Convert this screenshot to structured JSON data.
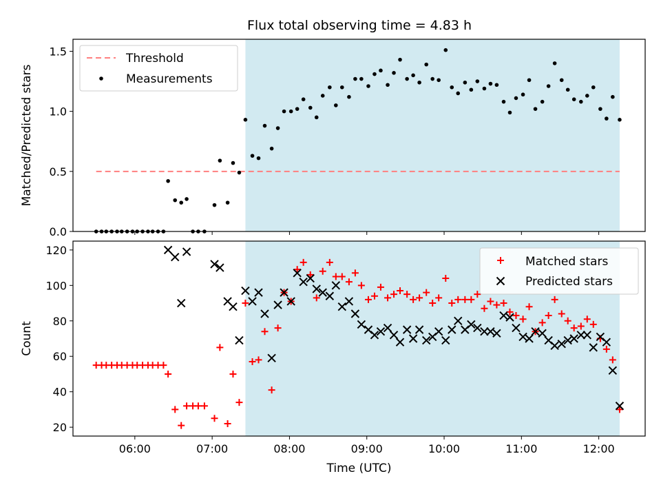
{
  "title": "Flux total observing time = 4.83 h",
  "colors": {
    "shade": "#add8e6",
    "threshold": "#ff7f7f",
    "measurements": "#000000",
    "matched": "#ff0000",
    "predicted": "#000000"
  },
  "chart_data": [
    {
      "type": "scatter",
      "panel": "top",
      "ylabel": "Matched/Predicted stars",
      "xlim": [
        5.2,
        12.6
      ],
      "ylim": [
        0,
        1.6
      ],
      "yticks": [
        0,
        0.5,
        1.0,
        1.5
      ],
      "ytick_labels": [
        "0.0",
        "0.5",
        "1.0",
        "1.5"
      ],
      "shade_span": [
        7.43,
        12.27
      ],
      "legend_position": "top-left",
      "threshold": {
        "name": "Threshold",
        "y": 0.5,
        "x_range": [
          5.5,
          12.27
        ],
        "style": "dashed"
      },
      "series": [
        {
          "name": "Measurements",
          "x": [
            5.5,
            5.57,
            5.63,
            5.7,
            5.77,
            5.83,
            5.9,
            5.97,
            6.03,
            6.1,
            6.17,
            6.23,
            6.3,
            6.37,
            6.43,
            6.52,
            6.6,
            6.67,
            6.75,
            6.82,
            6.9,
            7.03,
            7.1,
            7.2,
            7.27,
            7.35,
            7.43,
            7.52,
            7.6,
            7.68,
            7.77,
            7.85,
            7.93,
            8.02,
            8.1,
            8.18,
            8.27,
            8.35,
            8.43,
            8.52,
            8.6,
            8.68,
            8.77,
            8.85,
            8.93,
            9.02,
            9.1,
            9.18,
            9.27,
            9.35,
            9.43,
            9.52,
            9.6,
            9.68,
            9.77,
            9.85,
            9.93,
            10.02,
            10.1,
            10.18,
            10.27,
            10.35,
            10.43,
            10.52,
            10.6,
            10.68,
            10.77,
            10.85,
            10.93,
            11.02,
            11.1,
            11.18,
            11.27,
            11.35,
            11.43,
            11.52,
            11.6,
            11.68,
            11.77,
            11.85,
            11.93,
            12.02,
            12.1,
            12.18,
            12.27
          ],
          "y": [
            0,
            0,
            0,
            0,
            0,
            0,
            0,
            0,
            0,
            0,
            0,
            0,
            0,
            0,
            0.42,
            0.26,
            0.24,
            0.27,
            0,
            0,
            0,
            0.22,
            0.59,
            0.24,
            0.57,
            0.49,
            0.93,
            0.63,
            0.61,
            0.88,
            0.69,
            0.86,
            1.0,
            1.0,
            1.02,
            1.1,
            1.03,
            0.95,
            1.13,
            1.2,
            1.05,
            1.2,
            1.12,
            1.27,
            1.27,
            1.21,
            1.31,
            1.34,
            1.22,
            1.32,
            1.43,
            1.27,
            1.3,
            1.24,
            1.39,
            1.27,
            1.26,
            1.51,
            1.2,
            1.15,
            1.24,
            1.18,
            1.25,
            1.19,
            1.23,
            1.22,
            1.08,
            0.99,
            1.11,
            1.14,
            1.26,
            1.02,
            1.08,
            1.21,
            1.4,
            1.26,
            1.18,
            1.1,
            1.08,
            1.13,
            1.2,
            1.02,
            0.94,
            1.12,
            0.93
          ]
        }
      ]
    },
    {
      "type": "scatter",
      "panel": "bottom",
      "xlabel": "Time (UTC)",
      "ylabel": "Count",
      "xlim": [
        5.2,
        12.6
      ],
      "ylim": [
        15,
        125
      ],
      "xticks": [
        6,
        7,
        8,
        9,
        10,
        11,
        12
      ],
      "xtick_labels": [
        "06:00",
        "07:00",
        "08:00",
        "09:00",
        "10:00",
        "11:00",
        "12:00"
      ],
      "yticks": [
        20,
        40,
        60,
        80,
        100,
        120
      ],
      "ytick_labels": [
        "20",
        "40",
        "60",
        "80",
        "100",
        "120"
      ],
      "shade_span": [
        7.43,
        12.27
      ],
      "legend_position": "top-right",
      "series": [
        {
          "name": "Matched stars",
          "marker": "plus",
          "x": [
            5.5,
            5.57,
            5.63,
            5.7,
            5.77,
            5.83,
            5.9,
            5.97,
            6.03,
            6.1,
            6.17,
            6.23,
            6.3,
            6.37,
            6.43,
            6.52,
            6.6,
            6.67,
            6.75,
            6.82,
            6.9,
            7.03,
            7.1,
            7.2,
            7.27,
            7.35,
            7.43,
            7.52,
            7.6,
            7.68,
            7.77,
            7.85,
            7.93,
            8.02,
            8.1,
            8.18,
            8.27,
            8.35,
            8.43,
            8.52,
            8.6,
            8.68,
            8.77,
            8.85,
            8.93,
            9.02,
            9.1,
            9.18,
            9.27,
            9.35,
            9.43,
            9.52,
            9.6,
            9.68,
            9.77,
            9.85,
            9.93,
            10.02,
            10.1,
            10.18,
            10.27,
            10.35,
            10.43,
            10.52,
            10.6,
            10.68,
            10.77,
            10.85,
            10.93,
            11.02,
            11.1,
            11.18,
            11.27,
            11.35,
            11.43,
            11.52,
            11.6,
            11.68,
            11.77,
            11.85,
            11.93,
            12.02,
            12.1,
            12.18,
            12.27
          ],
          "y": [
            55,
            55,
            55,
            55,
            55,
            55,
            55,
            55,
            55,
            55,
            55,
            55,
            55,
            55,
            50,
            30,
            21,
            32,
            32,
            32,
            32,
            25,
            65,
            22,
            50,
            34,
            90,
            57,
            58,
            74,
            41,
            76,
            96,
            91,
            109,
            113,
            106,
            93,
            108,
            113,
            105,
            105,
            102,
            107,
            100,
            92,
            94,
            99,
            93,
            95,
            97,
            95,
            92,
            93,
            96,
            90,
            93,
            104,
            90,
            92,
            92,
            92,
            95,
            87,
            91,
            89,
            90,
            85,
            83,
            81,
            88,
            74,
            79,
            83,
            92,
            84,
            80,
            76,
            77,
            81,
            78,
            70,
            64,
            58,
            30
          ]
        },
        {
          "name": "Predicted stars",
          "marker": "cross",
          "x": [
            6.43,
            6.52,
            6.6,
            6.67,
            7.03,
            7.1,
            7.2,
            7.27,
            7.35,
            7.43,
            7.52,
            7.6,
            7.68,
            7.77,
            7.85,
            7.93,
            8.02,
            8.1,
            8.18,
            8.27,
            8.35,
            8.43,
            8.52,
            8.6,
            8.68,
            8.77,
            8.85,
            8.93,
            9.02,
            9.1,
            9.18,
            9.27,
            9.35,
            9.43,
            9.52,
            9.6,
            9.68,
            9.77,
            9.85,
            9.93,
            10.02,
            10.1,
            10.18,
            10.27,
            10.35,
            10.43,
            10.52,
            10.6,
            10.68,
            10.77,
            10.85,
            10.93,
            11.02,
            11.1,
            11.18,
            11.27,
            11.35,
            11.43,
            11.52,
            11.6,
            11.68,
            11.77,
            11.85,
            11.93,
            12.02,
            12.1,
            12.18,
            12.27
          ],
          "y": [
            120,
            116,
            90,
            119,
            112,
            110,
            91,
            88,
            69,
            97,
            91,
            96,
            84,
            59,
            89,
            96,
            91,
            107,
            102,
            104,
            98,
            96,
            94,
            100,
            88,
            91,
            84,
            78,
            75,
            72,
            74,
            76,
            72,
            68,
            75,
            70,
            75,
            69,
            71,
            74,
            69,
            75,
            80,
            75,
            78,
            76,
            74,
            74,
            73,
            83,
            82,
            76,
            71,
            70,
            74,
            73,
            69,
            66,
            67,
            69,
            70,
            72,
            72,
            65,
            71,
            68,
            52,
            32
          ]
        }
      ]
    }
  ]
}
